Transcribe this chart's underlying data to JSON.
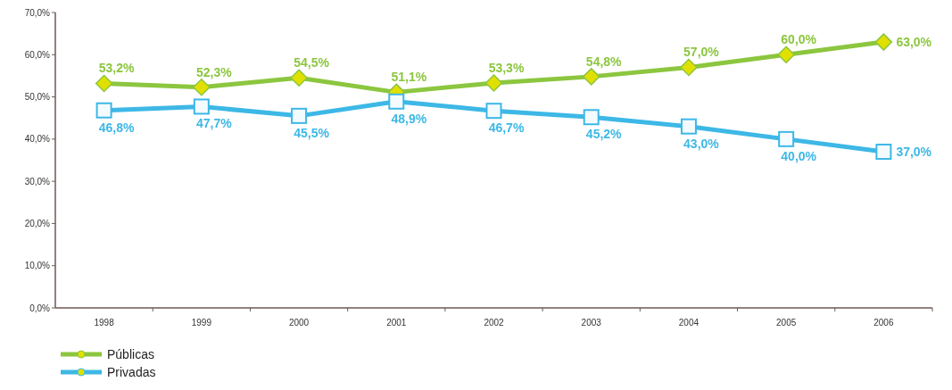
{
  "chart_data": {
    "type": "line",
    "categories": [
      "1998",
      "1999",
      "2000",
      "2001",
      "2002",
      "2003",
      "2004",
      "2005",
      "2006"
    ],
    "series": [
      {
        "name": "Públicas",
        "color": "#8cc63f",
        "marker": "diamond",
        "values": [
          53.2,
          52.3,
          54.5,
          51.1,
          53.3,
          54.8,
          57.0,
          60.0,
          63.0
        ],
        "value_labels": [
          "53,2%",
          "52,3%",
          "54,5%",
          "51,1%",
          "53,3%",
          "54,8%",
          "57,0%",
          "60,0%",
          "63,0%"
        ]
      },
      {
        "name": "Privadas",
        "color": "#3db8e6",
        "marker": "square",
        "values": [
          46.8,
          47.7,
          45.5,
          48.9,
          46.7,
          45.2,
          43.0,
          40.0,
          37.0
        ],
        "value_labels": [
          "46,8%",
          "47,7%",
          "45,5%",
          "48,9%",
          "46,7%",
          "45,2%",
          "43,0%",
          "40,0%",
          "37,0%"
        ]
      }
    ],
    "ylim": [
      0,
      70
    ],
    "yticks": [
      {
        "value": 0,
        "label": "0,0%"
      },
      {
        "value": 10,
        "label": "10,0%"
      },
      {
        "value": 20,
        "label": "20,0%"
      },
      {
        "value": 30,
        "label": "30,0%"
      },
      {
        "value": 40,
        "label": "40,0%"
      },
      {
        "value": 50,
        "label": "50,0%"
      },
      {
        "value": 60,
        "label": "60,0%"
      },
      {
        "value": 70,
        "label": "70,0%"
      }
    ],
    "grid": false,
    "legend": "bottom left"
  }
}
